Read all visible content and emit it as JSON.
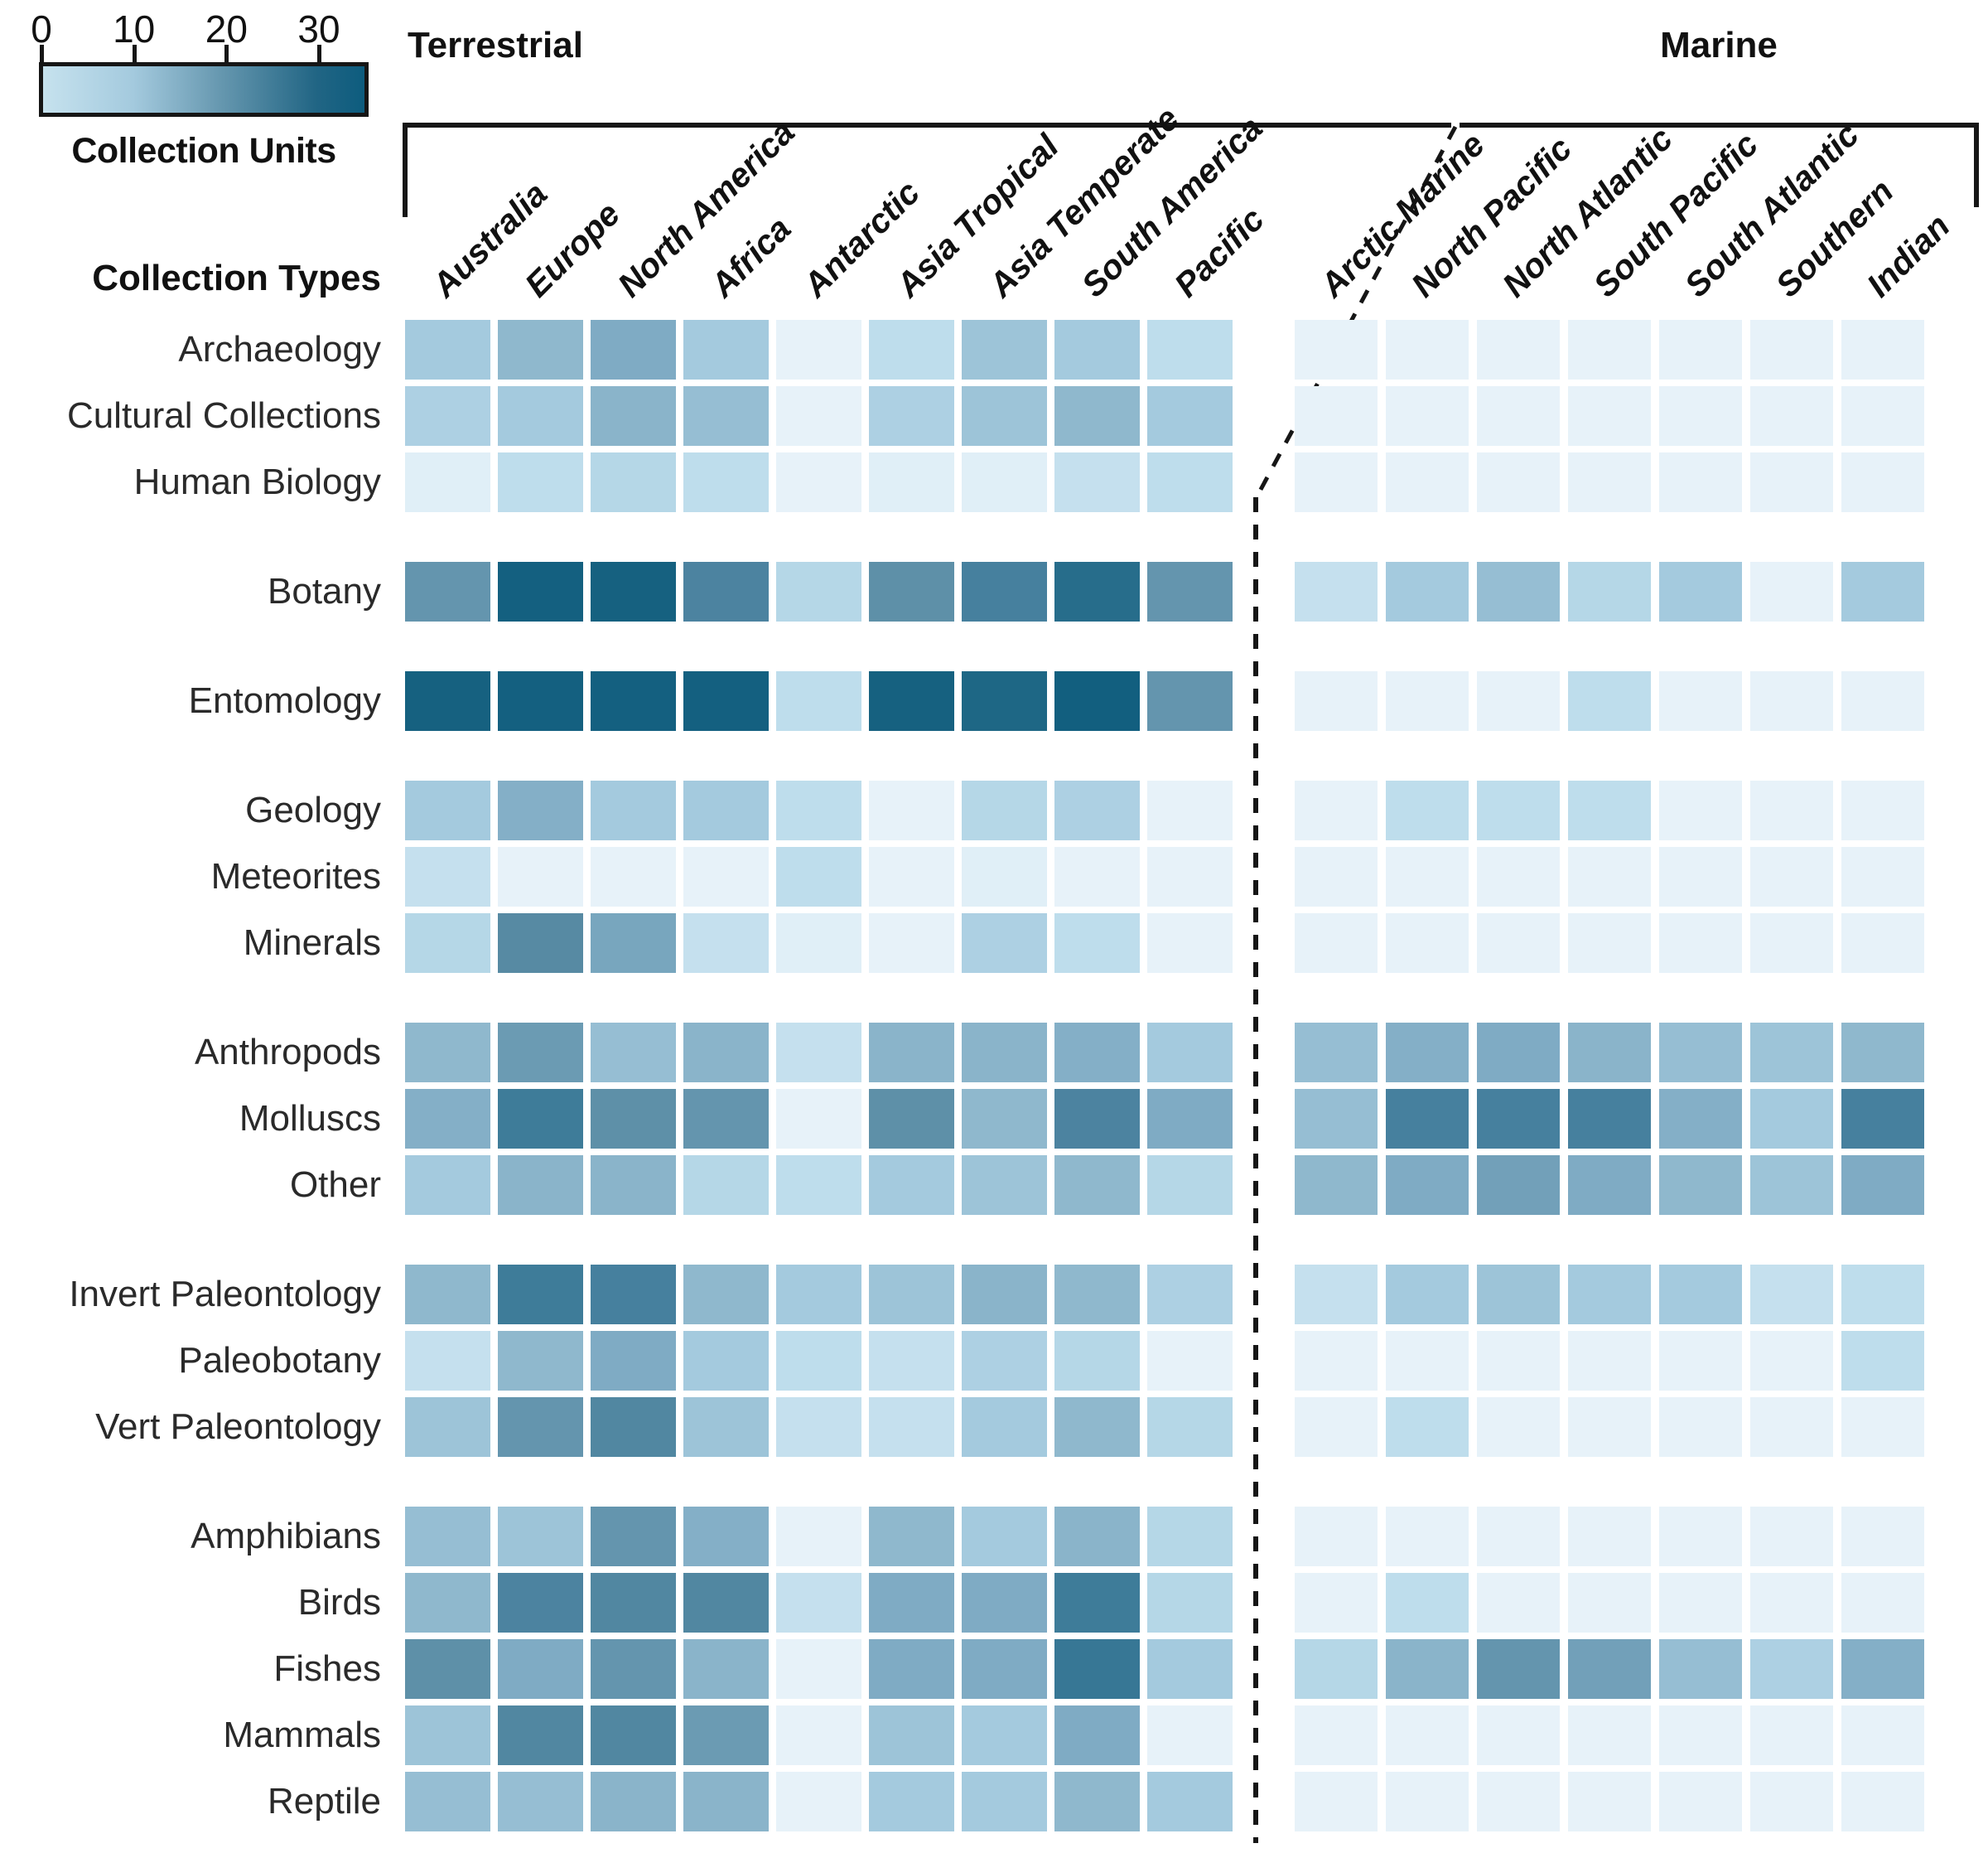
{
  "chart_data": {
    "type": "heatmap",
    "legend": {
      "label": "Collection Units",
      "ticks": [
        "0",
        "10",
        "20",
        "30"
      ],
      "tick_values": [
        0,
        10,
        20,
        30
      ],
      "range": [
        0,
        35
      ],
      "gradient_preview": [
        "#c6e2ee",
        "#a4cade",
        "#6496ae",
        "#216584",
        "#0d5c7e"
      ]
    },
    "row_axis_label": "Collection Types",
    "column_groups": {
      "terrestrial": {
        "label": "Terrestrial",
        "columns": [
          "Australia",
          "Europe",
          "North America",
          "Africa",
          "Antarctic",
          "Asia Tropical",
          "Asia Temperate",
          "South America",
          "Pacific"
        ]
      },
      "marine": {
        "label": "Marine",
        "columns": [
          "Arctic Marine",
          "North Pacific",
          "North Atlantic",
          "South Pacific",
          "South Atlantic",
          "Southern",
          "Indian"
        ]
      }
    },
    "colormap_stops": [
      [
        0,
        "#eef6fb"
      ],
      [
        4,
        "#d2e7f3"
      ],
      [
        7,
        "#beddec"
      ],
      [
        10,
        "#a4cade"
      ],
      [
        13,
        "#8fb8cd"
      ],
      [
        16,
        "#7fabc4"
      ],
      [
        19,
        "#6b9bb3"
      ],
      [
        22,
        "#578aa3"
      ],
      [
        25,
        "#46809e"
      ],
      [
        28,
        "#2f7390"
      ],
      [
        31,
        "#166180"
      ],
      [
        35,
        "#0d5c7e"
      ]
    ],
    "rows": [
      {
        "label": "Archaeology",
        "group": 0,
        "terrestrial": [
          10,
          13,
          16,
          10,
          1,
          7,
          11,
          10,
          7
        ],
        "marine": [
          1,
          1,
          1,
          1,
          1,
          1,
          1
        ]
      },
      {
        "label": "Cultural Collections",
        "group": 0,
        "terrestrial": [
          9,
          10,
          14,
          12,
          1,
          9,
          11,
          13,
          10
        ],
        "marine": [
          1,
          1,
          1,
          1,
          1,
          1,
          1
        ]
      },
      {
        "label": "Human Biology",
        "group": 0,
        "terrestrial": [
          2,
          7,
          8,
          7,
          1,
          2,
          2,
          6,
          7
        ],
        "marine": [
          1,
          1,
          1,
          1,
          1,
          1,
          1
        ]
      },
      {
        "label": "Botany",
        "group": 1,
        "terrestrial": [
          20,
          32,
          31,
          24,
          8,
          21,
          25,
          29,
          20
        ],
        "marine": [
          6,
          10,
          12,
          8,
          10,
          1,
          10
        ]
      },
      {
        "label": "Entomology",
        "group": 2,
        "terrestrial": [
          31,
          32,
          32,
          32,
          7,
          31,
          30,
          33,
          20
        ],
        "marine": [
          1,
          1,
          1,
          7,
          1,
          1,
          1
        ]
      },
      {
        "label": "Geology",
        "group": 3,
        "terrestrial": [
          10,
          15,
          10,
          10,
          7,
          1,
          8,
          9,
          1
        ],
        "marine": [
          1,
          7,
          7,
          7,
          1,
          1,
          1
        ]
      },
      {
        "label": "Meteorites",
        "group": 3,
        "terrestrial": [
          6,
          1,
          1,
          1,
          7,
          1,
          2,
          1,
          1
        ],
        "marine": [
          1,
          1,
          1,
          1,
          1,
          1,
          1
        ]
      },
      {
        "label": "Minerals",
        "group": 3,
        "terrestrial": [
          8,
          22,
          17,
          6,
          2,
          1,
          9,
          7,
          1
        ],
        "marine": [
          1,
          1,
          1,
          1,
          1,
          1,
          1
        ]
      },
      {
        "label": "Anthropods",
        "group": 4,
        "terrestrial": [
          13,
          19,
          12,
          14,
          6,
          14,
          14,
          15,
          10
        ],
        "marine": [
          12,
          15,
          16,
          14,
          12,
          11,
          13
        ]
      },
      {
        "label": "Molluscs",
        "group": 4,
        "terrestrial": [
          15,
          26,
          21,
          20,
          1,
          21,
          13,
          24,
          16
        ],
        "marine": [
          12,
          25,
          25,
          25,
          15,
          10,
          25
        ]
      },
      {
        "label": "Other",
        "group": 4,
        "terrestrial": [
          10,
          14,
          14,
          8,
          7,
          10,
          11,
          13,
          8
        ],
        "marine": [
          13,
          16,
          18,
          16,
          13,
          11,
          16
        ]
      },
      {
        "label": "Invert Paleontology",
        "group": 5,
        "terrestrial": [
          13,
          26,
          25,
          13,
          10,
          11,
          14,
          13,
          9
        ],
        "marine": [
          6,
          10,
          11,
          10,
          10,
          6,
          7
        ]
      },
      {
        "label": "Paleobotany",
        "group": 5,
        "terrestrial": [
          6,
          13,
          16,
          10,
          7,
          6,
          9,
          8,
          1
        ],
        "marine": [
          1,
          1,
          1,
          1,
          1,
          1,
          7
        ]
      },
      {
        "label": "Vert Paleontology",
        "group": 5,
        "terrestrial": [
          11,
          20,
          23,
          11,
          6,
          6,
          10,
          13,
          8
        ],
        "marine": [
          1,
          7,
          1,
          1,
          1,
          1,
          1
        ]
      },
      {
        "label": "Amphibians",
        "group": 6,
        "terrestrial": [
          12,
          11,
          20,
          15,
          1,
          13,
          10,
          14,
          8
        ],
        "marine": [
          1,
          1,
          1,
          1,
          1,
          1,
          1
        ]
      },
      {
        "label": "Birds",
        "group": 6,
        "terrestrial": [
          13,
          24,
          23,
          23,
          6,
          16,
          16,
          26,
          8
        ],
        "marine": [
          1,
          7,
          1,
          1,
          1,
          1,
          1
        ]
      },
      {
        "label": "Fishes",
        "group": 6,
        "terrestrial": [
          21,
          16,
          20,
          14,
          1,
          16,
          16,
          27,
          10
        ],
        "marine": [
          8,
          14,
          20,
          18,
          12,
          9,
          15
        ]
      },
      {
        "label": "Mammals",
        "group": 6,
        "terrestrial": [
          11,
          23,
          23,
          19,
          1,
          11,
          10,
          16,
          1
        ],
        "marine": [
          1,
          1,
          1,
          1,
          1,
          1,
          1
        ]
      },
      {
        "label": "Reptile",
        "group": 6,
        "terrestrial": [
          12,
          12,
          14,
          14,
          1,
          10,
          10,
          13,
          10
        ],
        "marine": [
          1,
          1,
          1,
          1,
          1,
          1,
          1
        ]
      }
    ]
  }
}
